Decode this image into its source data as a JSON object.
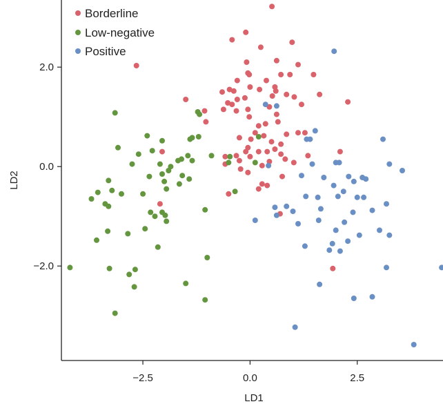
{
  "chart_data": {
    "type": "scatter",
    "title": "",
    "xlabel": "LD1",
    "ylabel": "LD2",
    "xlim": [
      -4.4,
      4.5
    ],
    "ylim": [
      -3.9,
      3.35
    ],
    "xticks": [
      -2.5,
      0.0,
      2.5
    ],
    "xtick_labels": [
      "−2.5",
      "0.0",
      "2.5"
    ],
    "yticks": [
      -2.0,
      0.0,
      2.0
    ],
    "ytick_labels": [
      "−2.0",
      "0.0",
      "2.0"
    ],
    "grid": false,
    "legend_position": "top-left",
    "series": [
      {
        "name": "Borderline",
        "color": "#d9626b",
        "points": [
          [
            0.51,
            3.22
          ],
          [
            -0.42,
            2.55
          ],
          [
            -0.1,
            2.7
          ],
          [
            0.98,
            2.5
          ],
          [
            -2.65,
            2.03
          ],
          [
            0.25,
            2.4
          ],
          [
            -0.08,
            2.1
          ],
          [
            0.62,
            2.13
          ],
          [
            1.12,
            2.05
          ],
          [
            0.72,
            1.85
          ],
          [
            0.93,
            1.85
          ],
          [
            1.48,
            1.85
          ],
          [
            -0.05,
            1.88
          ],
          [
            -0.02,
            1.85
          ],
          [
            -0.3,
            1.73
          ],
          [
            -0.65,
            1.5
          ],
          [
            -0.48,
            1.55
          ],
          [
            -0.38,
            1.52
          ],
          [
            0.38,
            1.73
          ],
          [
            0.58,
            1.6
          ],
          [
            0.6,
            1.52
          ],
          [
            0.0,
            1.6
          ],
          [
            0.22,
            1.55
          ],
          [
            0.85,
            1.45
          ],
          [
            0.52,
            1.42
          ],
          [
            1.62,
            1.45
          ],
          [
            2.28,
            1.3
          ],
          [
            -1.5,
            1.35
          ],
          [
            -0.52,
            1.28
          ],
          [
            -0.42,
            1.25
          ],
          [
            -0.3,
            1.35
          ],
          [
            -0.12,
            1.38
          ],
          [
            1.03,
            1.4
          ],
          [
            1.2,
            1.25
          ],
          [
            -0.62,
            1.15
          ],
          [
            -0.32,
            1.12
          ],
          [
            -0.05,
            1.15
          ],
          [
            0.45,
            1.2
          ],
          [
            0.62,
            1.05
          ],
          [
            -1.06,
            1.12
          ],
          [
            -0.02,
            1.0
          ],
          [
            -1.03,
            0.9
          ],
          [
            0.36,
            0.86
          ],
          [
            0.2,
            0.82
          ],
          [
            0.65,
            0.9
          ],
          [
            0.85,
            0.65
          ],
          [
            0.12,
            0.68
          ],
          [
            0.32,
            0.62
          ],
          [
            1.12,
            0.68
          ],
          [
            1.28,
            0.68
          ],
          [
            -0.25,
            0.58
          ],
          [
            0.02,
            0.55
          ],
          [
            0.5,
            0.5
          ],
          [
            0.72,
            0.45
          ],
          [
            -0.05,
            0.38
          ],
          [
            0.2,
            0.3
          ],
          [
            0.4,
            0.3
          ],
          [
            0.58,
            0.35
          ],
          [
            -2.05,
            0.3
          ],
          [
            -0.1,
            0.3
          ],
          [
            0.72,
            0.25
          ],
          [
            1.35,
            0.22
          ],
          [
            -0.58,
            0.2
          ],
          [
            -0.32,
            0.22
          ],
          [
            0.0,
            0.2
          ],
          [
            2.1,
            0.3
          ],
          [
            -0.25,
            0.12
          ],
          [
            0.45,
            0.1
          ],
          [
            0.82,
            0.15
          ],
          [
            1.02,
            0.08
          ],
          [
            -0.58,
            0.05
          ],
          [
            0.28,
            0.02
          ],
          [
            -0.22,
            -0.05
          ],
          [
            -0.05,
            -0.12
          ],
          [
            0.75,
            -0.2
          ],
          [
            0.28,
            -0.35
          ],
          [
            0.4,
            -0.38
          ],
          [
            0.2,
            -0.45
          ],
          [
            -0.5,
            -0.55
          ],
          [
            -2.1,
            -0.75
          ],
          [
            0.7,
            -0.95
          ],
          [
            1.93,
            -2.05
          ]
        ]
      },
      {
        "name": "Low-negative",
        "color": "#63963e",
        "points": [
          [
            -3.15,
            1.08
          ],
          [
            -1.22,
            1.1
          ],
          [
            -1.18,
            1.05
          ],
          [
            -2.4,
            0.62
          ],
          [
            -1.35,
            0.58
          ],
          [
            -1.2,
            0.6
          ],
          [
            -1.4,
            0.55
          ],
          [
            -3.08,
            0.38
          ],
          [
            -2.05,
            0.52
          ],
          [
            -2.28,
            0.32
          ],
          [
            -0.9,
            0.22
          ],
          [
            -0.47,
            0.2
          ],
          [
            0.2,
            0.6
          ],
          [
            -2.6,
            0.25
          ],
          [
            -1.6,
            0.15
          ],
          [
            -1.68,
            0.12
          ],
          [
            -1.35,
            0.12
          ],
          [
            -1.45,
            0.22
          ],
          [
            -2.75,
            0.05
          ],
          [
            -2.1,
            0.05
          ],
          [
            -1.85,
            0.0
          ],
          [
            -0.5,
            0.08
          ],
          [
            -1.9,
            -0.08
          ],
          [
            -2.05,
            -0.15
          ],
          [
            -1.58,
            -0.18
          ],
          [
            -2.35,
            -0.2
          ],
          [
            -3.3,
            -0.28
          ],
          [
            -1.42,
            -0.25
          ],
          [
            -2.0,
            -0.3
          ],
          [
            -3.55,
            -0.52
          ],
          [
            -3.7,
            -0.65
          ],
          [
            -3.0,
            -0.55
          ],
          [
            -2.5,
            -0.55
          ],
          [
            -3.22,
            -0.48
          ],
          [
            -1.65,
            -0.35
          ],
          [
            -1.95,
            -0.45
          ],
          [
            -0.35,
            -0.5
          ],
          [
            -3.38,
            -0.75
          ],
          [
            -3.3,
            -0.8
          ],
          [
            -2.32,
            -0.92
          ],
          [
            -2.05,
            -0.92
          ],
          [
            -1.98,
            -0.98
          ],
          [
            -2.22,
            -1.0
          ],
          [
            -1.95,
            -1.1
          ],
          [
            -1.05,
            -0.87
          ],
          [
            -3.58,
            -1.48
          ],
          [
            -3.32,
            -1.3
          ],
          [
            -2.85,
            -1.35
          ],
          [
            -2.45,
            -1.25
          ],
          [
            -2.15,
            -1.62
          ],
          [
            -1.0,
            -1.83
          ],
          [
            -4.2,
            -2.03
          ],
          [
            -3.28,
            -2.05
          ],
          [
            -2.68,
            -2.07
          ],
          [
            -2.82,
            -2.17
          ],
          [
            -2.7,
            -2.42
          ],
          [
            -1.5,
            -2.35
          ],
          [
            -1.05,
            -2.68
          ],
          [
            -3.15,
            -2.95
          ],
          [
            0.12,
            0.08
          ]
        ]
      },
      {
        "name": "Positive",
        "color": "#6a8fc4",
        "points": [
          [
            1.96,
            2.32
          ],
          [
            0.36,
            1.25
          ],
          [
            0.62,
            1.22
          ],
          [
            1.32,
            0.55
          ],
          [
            1.4,
            0.55
          ],
          [
            1.52,
            0.72
          ],
          [
            3.1,
            0.55
          ],
          [
            1.45,
            0.05
          ],
          [
            2.0,
            0.08
          ],
          [
            2.08,
            0.08
          ],
          [
            3.25,
            0.05
          ],
          [
            3.55,
            -0.08
          ],
          [
            0.43,
            0.02
          ],
          [
            1.2,
            -0.18
          ],
          [
            1.72,
            -0.22
          ],
          [
            2.3,
            -0.2
          ],
          [
            2.42,
            -0.3
          ],
          [
            2.62,
            -0.22
          ],
          [
            2.7,
            -0.25
          ],
          [
            1.95,
            -0.38
          ],
          [
            2.18,
            -0.5
          ],
          [
            2.65,
            -0.62
          ],
          [
            1.3,
            -0.6
          ],
          [
            1.58,
            -0.62
          ],
          [
            2.05,
            -0.6
          ],
          [
            2.5,
            -0.62
          ],
          [
            3.18,
            -0.75
          ],
          [
            1.65,
            -0.85
          ],
          [
            2.4,
            -0.92
          ],
          [
            2.85,
            -0.88
          ],
          [
            0.58,
            -0.82
          ],
          [
            0.85,
            -0.8
          ],
          [
            0.62,
            -0.98
          ],
          [
            1.0,
            -0.9
          ],
          [
            0.12,
            -1.08
          ],
          [
            1.6,
            -1.08
          ],
          [
            2.2,
            -1.12
          ],
          [
            1.12,
            -1.15
          ],
          [
            2.0,
            -1.28
          ],
          [
            2.55,
            -1.38
          ],
          [
            3.02,
            -1.28
          ],
          [
            3.25,
            -1.38
          ],
          [
            1.92,
            -1.55
          ],
          [
            2.28,
            -1.5
          ],
          [
            1.28,
            -1.6
          ],
          [
            1.85,
            -1.68
          ],
          [
            2.1,
            -1.7
          ],
          [
            3.18,
            -2.03
          ],
          [
            4.47,
            -2.03
          ],
          [
            1.62,
            -2.37
          ],
          [
            2.42,
            -2.65
          ],
          [
            2.85,
            -2.62
          ],
          [
            1.05,
            -3.23
          ],
          [
            3.82,
            -3.58
          ]
        ]
      }
    ]
  }
}
